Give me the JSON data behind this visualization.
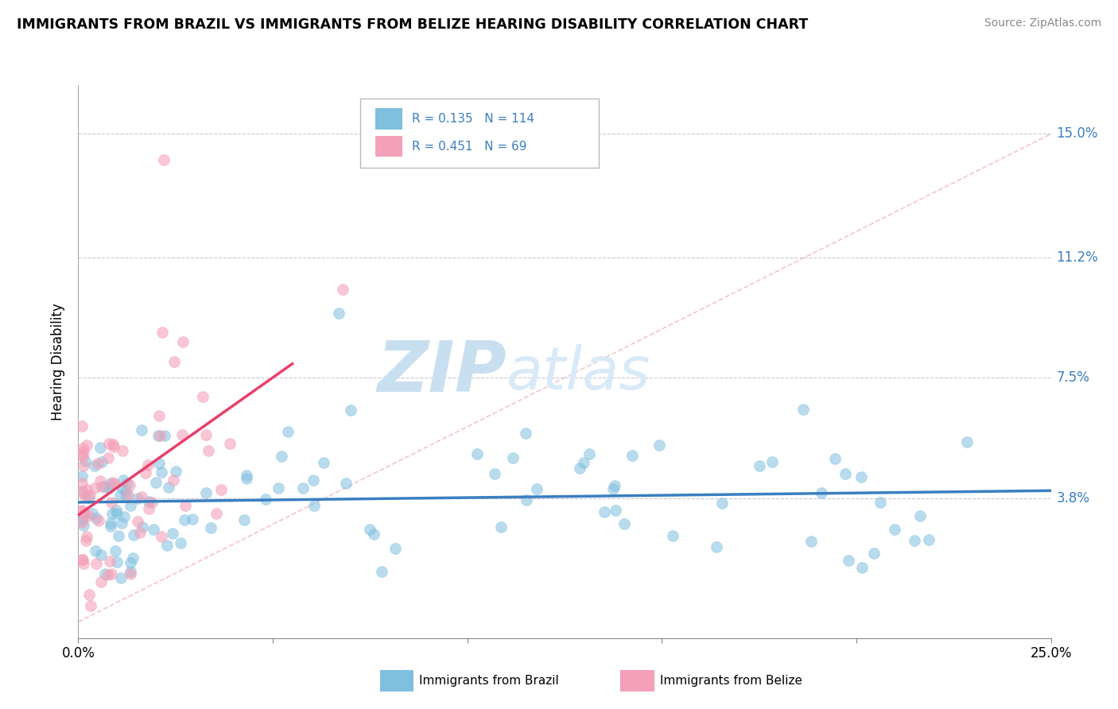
{
  "title": "IMMIGRANTS FROM BRAZIL VS IMMIGRANTS FROM BELIZE HEARING DISABILITY CORRELATION CHART",
  "source": "Source: ZipAtlas.com",
  "ylabel_ticks": [
    0.038,
    0.075,
    0.112,
    0.15
  ],
  "ylabel_tick_labels": [
    "3.8%",
    "7.5%",
    "11.2%",
    "15.0%"
  ],
  "xlim": [
    0.0,
    0.25
  ],
  "ylim": [
    -0.005,
    0.165
  ],
  "brazil_R": 0.135,
  "brazil_N": 114,
  "belize_R": 0.451,
  "belize_N": 69,
  "brazil_color": "#7fbfdf",
  "belize_color": "#f4a0b8",
  "brazil_line_color": "#3a7fc1",
  "belize_line_color": "#e8406a",
  "ref_line_color": "#f0c0c8",
  "watermark_zip": "ZIP",
  "watermark_atlas": "atlas",
  "watermark_color_zip": "#c8dff0",
  "watermark_color_atlas": "#c8ddf0",
  "legend_label_brazil": "Immigrants from Brazil",
  "legend_label_belize": "Immigrants from Belize"
}
